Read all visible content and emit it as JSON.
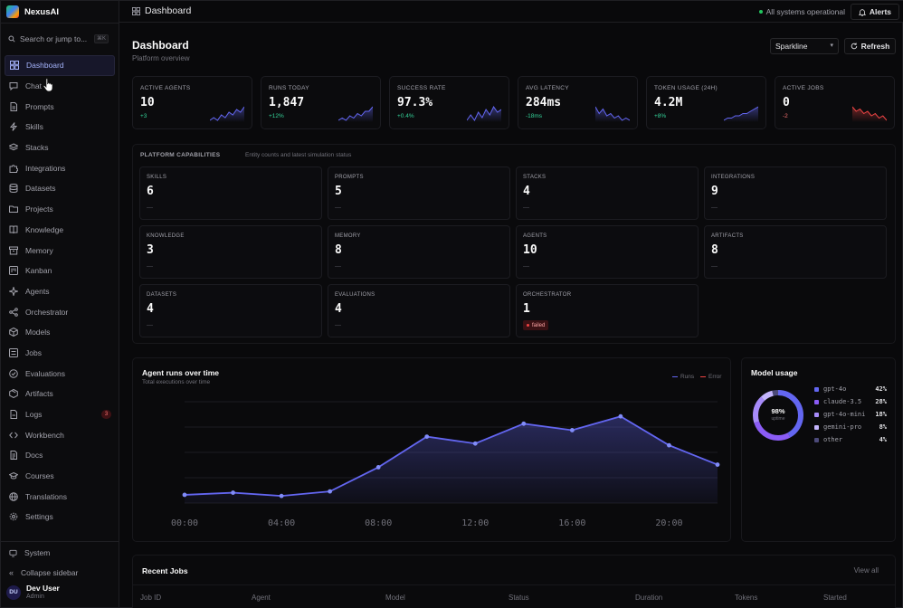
{
  "app": {
    "name": "NexusAI"
  },
  "search": {
    "placeholder": "Search or jump to...",
    "shortcut": "⌘K"
  },
  "sidebar": {
    "items": [
      {
        "label": "Dashboard",
        "icon": "grid-icon",
        "active": true
      },
      {
        "label": "Chat",
        "icon": "chat-icon"
      },
      {
        "label": "Prompts",
        "icon": "file-text-icon"
      },
      {
        "label": "Skills",
        "icon": "zap-icon"
      },
      {
        "label": "Stacks",
        "icon": "layers-icon"
      },
      {
        "label": "Integrations",
        "icon": "puzzle-icon"
      },
      {
        "label": "Datasets",
        "icon": "database-icon"
      },
      {
        "label": "Projects",
        "icon": "folder-icon"
      },
      {
        "label": "Knowledge",
        "icon": "book-icon"
      },
      {
        "label": "Memory",
        "icon": "archive-icon"
      },
      {
        "label": "Kanban",
        "icon": "kanban-icon"
      },
      {
        "label": "Agents",
        "icon": "sparkle-icon"
      },
      {
        "label": "Orchestrator",
        "icon": "share-icon"
      },
      {
        "label": "Models",
        "icon": "box-icon"
      },
      {
        "label": "Jobs",
        "icon": "list-icon"
      },
      {
        "label": "Evaluations",
        "icon": "check-circle-icon"
      },
      {
        "label": "Artifacts",
        "icon": "package-icon"
      },
      {
        "label": "Logs",
        "icon": "log-icon",
        "badge": "3"
      },
      {
        "label": "Workbench",
        "icon": "code-icon"
      },
      {
        "label": "Docs",
        "icon": "docs-icon"
      },
      {
        "label": "Courses",
        "icon": "graduation-icon"
      },
      {
        "label": "Translations",
        "icon": "globe-icon"
      },
      {
        "label": "Settings",
        "icon": "gear-icon"
      }
    ],
    "system_label": "System",
    "collapse_label": "Collapse sidebar"
  },
  "user": {
    "initials": "DU",
    "name": "Dev User",
    "role": "Admin"
  },
  "topbar": {
    "title": "Dashboard",
    "status": "All systems operational",
    "alerts_label": "Alerts"
  },
  "page": {
    "title": "Dashboard",
    "subtitle": "Platform overview",
    "view_select": "Sparkline",
    "refresh_label": "Refresh"
  },
  "stats": [
    {
      "label": "ACTIVE AGENTS",
      "value": "10",
      "delta": "+3",
      "trend": "up",
      "color": "#6366f1",
      "spark": [
        3,
        4,
        3,
        5,
        4,
        6,
        5,
        7,
        6,
        8
      ]
    },
    {
      "label": "RUNS TODAY",
      "value": "1,847",
      "delta": "+12%",
      "trend": "up",
      "color": "#6366f1",
      "spark": [
        2,
        3,
        2,
        4,
        3,
        5,
        4,
        6,
        6,
        8
      ]
    },
    {
      "label": "SUCCESS RATE",
      "value": "97.3%",
      "delta": "+0.4%",
      "trend": "up",
      "color": "#6366f1",
      "spark": [
        3,
        5,
        3,
        6,
        4,
        7,
        5,
        8,
        6,
        7
      ]
    },
    {
      "label": "AVG LATENCY",
      "value": "284ms",
      "delta": "-18ms",
      "trend": "up",
      "color": "#6366f1",
      "spark": [
        8,
        5,
        7,
        4,
        5,
        3,
        4,
        2,
        3,
        2
      ]
    },
    {
      "label": "TOKEN USAGE (24H)",
      "value": "4.2M",
      "delta": "+8%",
      "trend": "up",
      "color": "#6366f1",
      "spark": [
        2,
        3,
        3,
        4,
        4,
        5,
        5,
        6,
        7,
        8
      ]
    },
    {
      "label": "ACTIVE JOBS",
      "value": "0",
      "delta": "-2",
      "trend": "down",
      "color": "#ef4444",
      "spark": [
        8,
        6,
        7,
        5,
        6,
        4,
        5,
        3,
        4,
        2
      ]
    }
  ],
  "capabilities": {
    "title": "PLATFORM CAPABILITIES",
    "description": "Entity counts and latest simulation status",
    "items": [
      {
        "label": "SKILLS",
        "value": "6",
        "status": "—"
      },
      {
        "label": "PROMPTS",
        "value": "5",
        "status": "—"
      },
      {
        "label": "STACKS",
        "value": "4",
        "status": "—"
      },
      {
        "label": "INTEGRATIONS",
        "value": "9",
        "status": "—"
      },
      {
        "label": "KNOWLEDGE",
        "value": "3",
        "status": "—"
      },
      {
        "label": "MEMORY",
        "value": "8",
        "status": "—"
      },
      {
        "label": "AGENTS",
        "value": "10",
        "status": "—"
      },
      {
        "label": "ARTIFACTS",
        "value": "8",
        "status": "—"
      },
      {
        "label": "DATASETS",
        "value": "4",
        "status": "—"
      },
      {
        "label": "EVALUATIONS",
        "value": "4",
        "status": "—"
      },
      {
        "label": "ORCHESTRATOR",
        "value": "1",
        "badge": "failed"
      }
    ]
  },
  "runs_chart": {
    "title": "Agent runs over time",
    "subtitle": "Total executions over time",
    "legend": [
      {
        "name": "Runs",
        "color": "#6366f1"
      },
      {
        "name": "Error",
        "color": "#ef4444"
      }
    ]
  },
  "chart_data": {
    "type": "area",
    "x": [
      "00:00",
      "02:00",
      "04:00",
      "06:00",
      "08:00",
      "10:00",
      "12:00",
      "14:00",
      "16:00",
      "18:00",
      "20:00",
      "22:00"
    ],
    "tick_labels": [
      "00:00",
      "04:00",
      "08:00",
      "12:00",
      "16:00",
      "20:00"
    ],
    "series": [
      {
        "name": "Runs",
        "values": [
          0.4,
          0.9,
          0.15,
          1.2,
          6.8,
          13.9,
          12.3,
          16.9,
          15.4,
          18.6,
          11.9,
          7.4
        ]
      }
    ],
    "ylim": [
      -1.5,
      22
    ],
    "grid": true,
    "color": "#6366f1",
    "legend_position": "top-right"
  },
  "model_usage": {
    "title": "Model usage",
    "uptime_value": "98%",
    "uptime_label": "uptime",
    "models": [
      {
        "name": "gpt-4o",
        "pct": "42%",
        "value": 42,
        "color": "#6366f1"
      },
      {
        "name": "claude-3.5",
        "pct": "28%",
        "value": 28,
        "color": "#8b5cf6"
      },
      {
        "name": "gpt-4o-mini",
        "pct": "18%",
        "value": 18,
        "color": "#a78bfa"
      },
      {
        "name": "gemini-pro",
        "pct": "8%",
        "value": 8,
        "color": "#c4b5fd"
      },
      {
        "name": "other",
        "pct": "4%",
        "value": 4,
        "color": "#4c4a7a"
      }
    ]
  },
  "recent_jobs": {
    "title": "Recent Jobs",
    "view_all": "View all",
    "columns": [
      "Job ID",
      "Agent",
      "Model",
      "Status",
      "Duration",
      "Tokens",
      "Started"
    ]
  }
}
